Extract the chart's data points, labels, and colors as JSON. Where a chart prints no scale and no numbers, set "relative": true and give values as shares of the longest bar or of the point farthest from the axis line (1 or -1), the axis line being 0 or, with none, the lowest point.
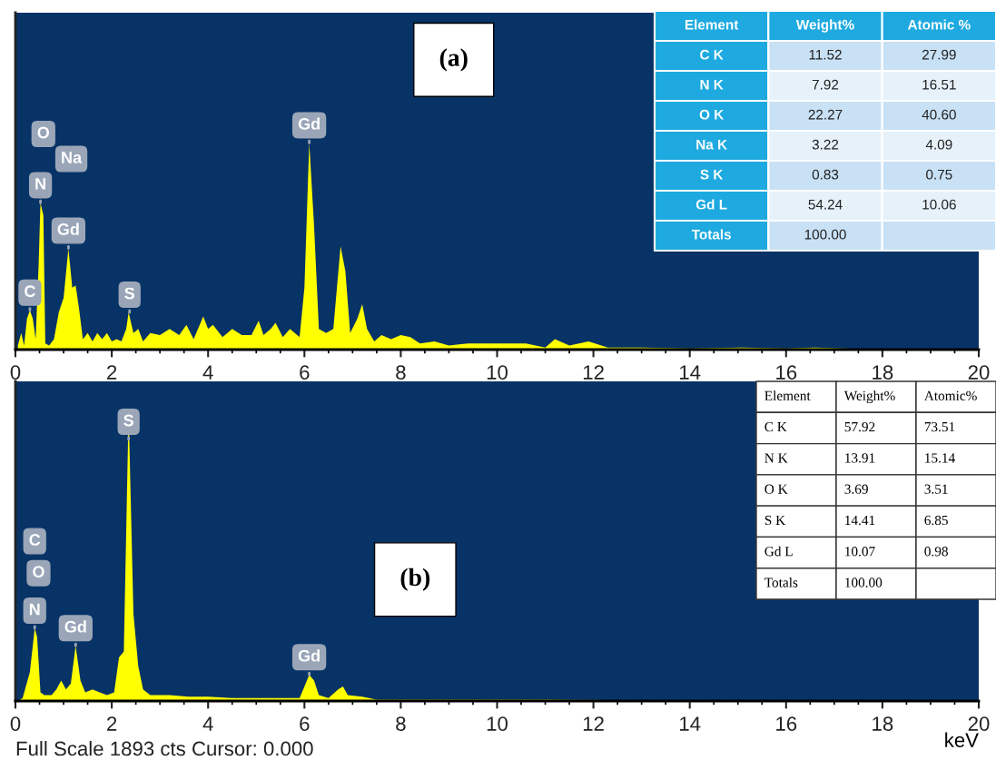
{
  "chart_data": [
    {
      "type": "area",
      "relative": true,
      "color": "#ffff00",
      "xlim": [
        0,
        20
      ],
      "xticks": [
        0,
        2,
        4,
        6,
        8,
        10,
        12,
        14,
        16,
        18,
        20
      ],
      "tick_labels": "x",
      "x": [
        0.05,
        0.12,
        0.18,
        0.24,
        0.3,
        0.36,
        0.42,
        0.48,
        0.52,
        0.58,
        0.62,
        0.7,
        0.8,
        0.9,
        1.0,
        1.1,
        1.18,
        1.25,
        1.32,
        1.4,
        1.5,
        1.6,
        1.7,
        1.8,
        1.9,
        2.0,
        2.1,
        2.2,
        2.3,
        2.35,
        2.45,
        2.55,
        2.65,
        2.8,
        3.0,
        3.2,
        3.4,
        3.55,
        3.7,
        3.9,
        4.0,
        4.1,
        4.3,
        4.5,
        4.7,
        4.9,
        5.05,
        5.15,
        5.3,
        5.4,
        5.55,
        5.7,
        5.9,
        6.0,
        6.1,
        6.2,
        6.3,
        6.45,
        6.6,
        6.75,
        6.85,
        6.95,
        7.1,
        7.2,
        7.3,
        7.45,
        7.6,
        7.8,
        8.0,
        8.2,
        8.4,
        8.7,
        9.0,
        9.4,
        9.8,
        10.2,
        10.6,
        11.0,
        11.2,
        11.5,
        11.9,
        12.3,
        13.0,
        14.0,
        15.1,
        16.0,
        16.6,
        17.5,
        20
      ],
      "values": [
        0.02,
        0.08,
        0.02,
        0.15,
        0.19,
        0.15,
        0.05,
        0.4,
        0.71,
        0.65,
        0.03,
        0.02,
        0.05,
        0.18,
        0.25,
        0.49,
        0.3,
        0.31,
        0.2,
        0.05,
        0.08,
        0.04,
        0.08,
        0.05,
        0.08,
        0.04,
        0.05,
        0.04,
        0.1,
        0.18,
        0.08,
        0.1,
        0.04,
        0.08,
        0.07,
        0.1,
        0.07,
        0.12,
        0.05,
        0.16,
        0.1,
        0.12,
        0.06,
        0.1,
        0.07,
        0.07,
        0.14,
        0.07,
        0.1,
        0.13,
        0.06,
        0.1,
        0.06,
        0.3,
        1.0,
        0.6,
        0.1,
        0.08,
        0.1,
        0.5,
        0.38,
        0.08,
        0.15,
        0.22,
        0.1,
        0.04,
        0.07,
        0.05,
        0.07,
        0.06,
        0.03,
        0.04,
        0.02,
        0.03,
        0.03,
        0.03,
        0.03,
        0.01,
        0.05,
        0.02,
        0.04,
        0.01,
        0.01,
        0.005,
        0.01,
        0.005,
        0.01,
        0.003,
        0
      ],
      "annotations": [
        "(a)",
        "O",
        "Na",
        {
          "text": "C",
          "x": 0.3,
          "y": 0.19
        },
        {
          "text": "N",
          "x": 0.52,
          "y": 0.71
        },
        {
          "text": "Gd",
          "x": 1.1,
          "y": 0.49
        },
        {
          "text": "S",
          "x": 2.37,
          "y": 0.18
        },
        {
          "text": "Gd",
          "x": 6.1,
          "y": 1.0
        }
      ]
    },
    {
      "type": "other",
      "annotations": [
        "Element",
        "Weight%",
        "Atomic %",
        "C K",
        "11.52",
        "27.99",
        "N K",
        "7.92",
        "16.51",
        "O K",
        "22.27",
        "40.60",
        "Na K",
        "3.22",
        "4.09",
        "S K",
        "0.83",
        "0.75",
        "Gd L",
        "54.24",
        "10.06",
        "Totals",
        "100.00"
      ]
    },
    {
      "type": "area",
      "relative": true,
      "color": "#ffff00",
      "xlim": [
        0,
        20
      ],
      "xticks": [
        0,
        2,
        4,
        6,
        8,
        10,
        12,
        14,
        16,
        18,
        20
      ],
      "tick_labels": "x",
      "xlabel": "keV",
      "x": [
        0.05,
        0.15,
        0.3,
        0.4,
        0.45,
        0.52,
        0.6,
        0.75,
        0.85,
        0.95,
        1.05,
        1.15,
        1.25,
        1.35,
        1.45,
        1.6,
        1.75,
        1.9,
        2.05,
        2.15,
        2.25,
        2.35,
        2.45,
        2.55,
        2.65,
        2.8,
        3.2,
        3.6,
        4.0,
        4.5,
        5.0,
        5.5,
        5.9,
        6.0,
        6.1,
        6.2,
        6.3,
        6.5,
        6.7,
        6.8,
        6.9,
        7.2,
        7.5,
        8.0,
        9.0,
        10,
        11,
        13,
        20
      ],
      "values": [
        0.0,
        0.01,
        0.1,
        0.25,
        0.22,
        0.03,
        0.02,
        0.02,
        0.04,
        0.07,
        0.04,
        0.06,
        0.19,
        0.07,
        0.03,
        0.04,
        0.03,
        0.02,
        0.03,
        0.15,
        0.17,
        1.0,
        0.3,
        0.12,
        0.04,
        0.02,
        0.02,
        0.015,
        0.015,
        0.01,
        0.01,
        0.01,
        0.01,
        0.05,
        0.09,
        0.07,
        0.02,
        0.01,
        0.04,
        0.05,
        0.02,
        0.015,
        0.005,
        0.005,
        0.005,
        0.005,
        0.005,
        0.002,
        0
      ],
      "annotations": [
        "(b)",
        "Full Scale 1893 cts Cursor: 0.000",
        "C",
        "O",
        {
          "text": "N",
          "x": 0.4,
          "y": 0.25
        },
        {
          "text": "Gd",
          "x": 1.25,
          "y": 0.19
        },
        {
          "text": "S",
          "x": 2.35,
          "y": 0.9
        },
        {
          "text": "Gd",
          "x": 6.1,
          "y": 0.09
        }
      ]
    },
    {
      "type": "other",
      "annotations": [
        "Element",
        "Weight%",
        "Atomic%",
        "C K",
        "57.92",
        "73.51",
        "N K",
        "13.91",
        "15.14",
        "O K",
        "3.69",
        "3.51",
        "S K",
        "14.41",
        "6.85",
        "Gd L",
        "10.07",
        "0.98",
        "Totals",
        "100.00"
      ]
    }
  ]
}
